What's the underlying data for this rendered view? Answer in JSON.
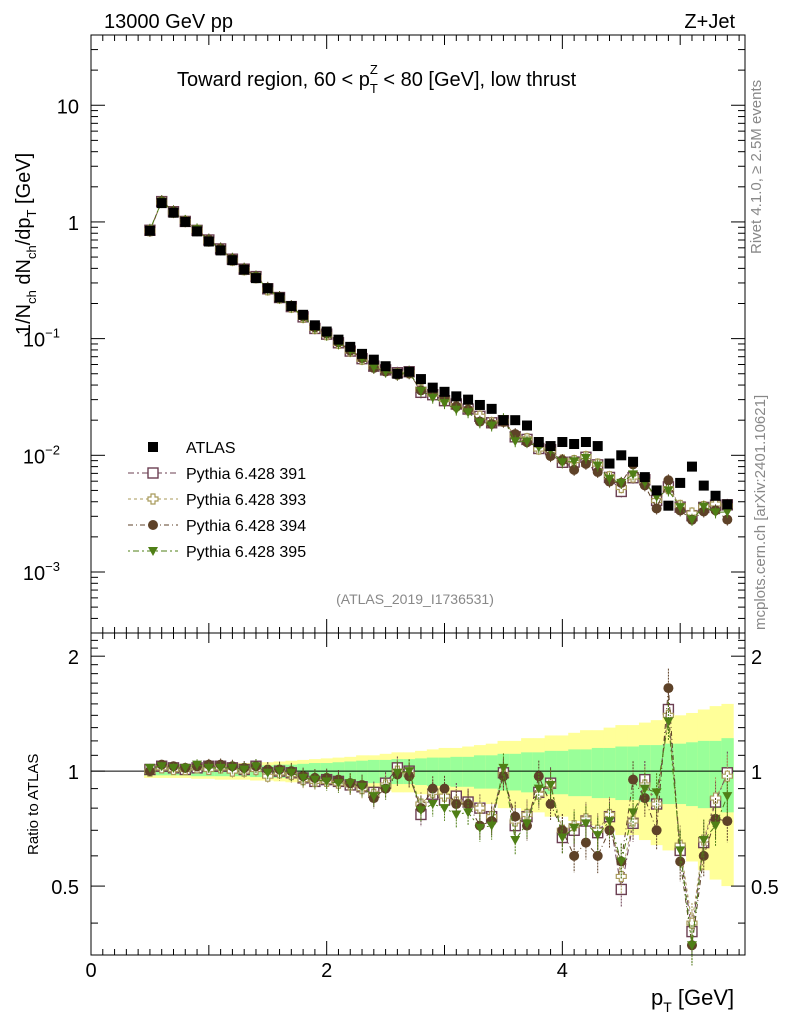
{
  "header": {
    "energy_label": "13000 GeV pp",
    "process_label": "Z+Jet",
    "plot_title_pre": "Toward region, 60 < p",
    "plot_title_sup": "Z",
    "plot_title_sub": "T",
    "plot_title_post": " < 80 [GeV], low thrust",
    "side_label_rivet": "Rivet 4.1.0, ≥ 2.5M events",
    "side_label_mcplots": "mcplots.cern.ch [arXiv:2401.10621]",
    "analysis_id": "(ATLAS_2019_I1736531)"
  },
  "axes": {
    "main_ylabel_parts": [
      "1/N",
      "ch",
      " dN",
      "ch",
      "/dp",
      "T",
      " [GeV]"
    ],
    "main_ylabel": "1/N_ch dN_ch/dp_T [GeV]",
    "ratio_ylabel": "Ratio to ATLAS",
    "xlabel_main": "p",
    "xlabel_sub": "T",
    "xlabel_unit": " [GeV]",
    "main_yticks": [
      {
        "value": 10,
        "label": "10",
        "exp": ""
      },
      {
        "value": 1,
        "label": "1",
        "exp": ""
      },
      {
        "value": 0.1,
        "label": "10",
        "exp": "−1"
      },
      {
        "value": 0.01,
        "label": "10",
        "exp": "−2"
      },
      {
        "value": 0.001,
        "label": "10",
        "exp": "−3"
      }
    ],
    "ratio_yticks": [
      {
        "value": 0.5,
        "label": "0.5"
      },
      {
        "value": 1,
        "label": "1"
      },
      {
        "value": 2,
        "label": "2"
      }
    ],
    "xticks": [
      {
        "value": 0,
        "label": "0"
      },
      {
        "value": 2,
        "label": "2"
      },
      {
        "value": 4,
        "label": "4"
      }
    ]
  },
  "legend": [
    {
      "label": "ATLAS",
      "key": "atlas"
    },
    {
      "label": "Pythia 6.428 391",
      "key": "s391"
    },
    {
      "label": "Pythia 6.428 393",
      "key": "s393"
    },
    {
      "label": "Pythia 6.428 394",
      "key": "s394"
    },
    {
      "label": "Pythia 6.428 395",
      "key": "s395"
    }
  ],
  "colors": {
    "atlas": "#000000",
    "s391": "#6b3f52",
    "s393": "#a89a5a",
    "s394": "#5e4228",
    "s395": "#4f7f16",
    "band_outer": "#ffff99",
    "band_inner": "#99ff99"
  },
  "chart_data": {
    "type": "scatter",
    "title": "Toward region, 60 < pT^Z < 80 [GeV], low thrust",
    "xlabel": "pT [GeV]",
    "ylabel": "1/Nch dNch/dpT [GeV]",
    "ratio_ylabel": "Ratio to ATLAS",
    "xlim": [
      0,
      5.55
    ],
    "ylim": [
      0.0003,
      40
    ],
    "yscale": "log",
    "ratio_ylim": [
      0.33,
      2.3
    ],
    "ratio_yscale": "log",
    "x": [
      0.5,
      0.6,
      0.7,
      0.8,
      0.9,
      1.0,
      1.1,
      1.2,
      1.3,
      1.4,
      1.5,
      1.6,
      1.7,
      1.8,
      1.9,
      2.0,
      2.1,
      2.2,
      2.3,
      2.4,
      2.5,
      2.6,
      2.7,
      2.8,
      2.9,
      3.0,
      3.1,
      3.2,
      3.3,
      3.4,
      3.5,
      3.6,
      3.7,
      3.8,
      3.9,
      4.0,
      4.1,
      4.2,
      4.3,
      4.4,
      4.5,
      4.6,
      4.7,
      4.8,
      4.9,
      5.0,
      5.1,
      5.2,
      5.3,
      5.4
    ],
    "atlas": [
      0.84,
      1.45,
      1.2,
      1.0,
      0.83,
      0.68,
      0.57,
      0.47,
      0.39,
      0.33,
      0.27,
      0.225,
      0.19,
      0.16,
      0.13,
      0.115,
      0.098,
      0.085,
      0.074,
      0.066,
      0.058,
      0.05,
      0.052,
      0.045,
      0.038,
      0.035,
      0.032,
      0.03,
      0.027,
      0.025,
      0.02,
      0.02,
      0.018,
      0.013,
      0.012,
      0.013,
      0.0125,
      0.013,
      0.012,
      0.0085,
      0.01,
      0.0088,
      0.0065,
      0.005,
      0.0037,
      0.0058,
      0.008,
      0.0055,
      0.0045,
      0.0038
    ],
    "series": [
      {
        "name": "Pythia 6.428 391",
        "key": "s391",
        "marker": "open-square",
        "ratio": [
          1.01,
          1.03,
          1.02,
          1.01,
          1.02,
          1.03,
          1.03,
          1.02,
          1.01,
          1.03,
          0.99,
          1.0,
          0.99,
          0.96,
          0.94,
          0.95,
          0.94,
          0.92,
          0.91,
          0.88,
          0.93,
          1.02,
          1.0,
          0.77,
          0.87,
          0.84,
          0.86,
          0.83,
          0.8,
          0.76,
          0.99,
          0.72,
          0.76,
          0.88,
          0.93,
          0.67,
          0.7,
          0.74,
          0.69,
          0.76,
          0.49,
          0.73,
          0.95,
          0.82,
          1.45,
          0.62,
          0.38,
          0.65,
          0.83,
          0.99
        ]
      },
      {
        "name": "Pythia 6.428 393",
        "key": "s393",
        "marker": "open-cross",
        "ratio": [
          1.0,
          1.02,
          1.01,
          1.01,
          1.02,
          1.01,
          1.02,
          1.0,
          1.0,
          1.01,
          0.97,
          0.99,
          0.98,
          0.95,
          0.94,
          0.94,
          0.93,
          0.92,
          0.9,
          0.87,
          0.92,
          1.0,
          0.98,
          0.82,
          0.88,
          0.86,
          0.83,
          0.82,
          0.8,
          0.76,
          0.98,
          0.74,
          0.77,
          0.87,
          0.92,
          0.7,
          0.72,
          0.75,
          0.7,
          0.77,
          0.53,
          0.74,
          0.92,
          0.82,
          1.4,
          0.64,
          0.4,
          0.66,
          0.85,
          0.97
        ]
      },
      {
        "name": "Pythia 6.428 394",
        "key": "s394",
        "marker": "filled-circle",
        "ratio": [
          1.0,
          1.04,
          1.03,
          1.02,
          1.03,
          1.04,
          1.04,
          1.03,
          1.02,
          1.03,
          1.01,
          1.01,
          1.0,
          0.97,
          0.96,
          0.96,
          0.95,
          0.93,
          0.92,
          0.85,
          0.9,
          0.98,
          0.97,
          0.8,
          0.9,
          0.9,
          0.82,
          0.82,
          0.72,
          0.74,
          0.97,
          0.76,
          0.72,
          0.97,
          0.82,
          0.7,
          0.6,
          0.65,
          0.6,
          0.7,
          0.58,
          0.95,
          0.85,
          0.7,
          1.65,
          0.58,
          0.35,
          0.6,
          0.75,
          0.74
        ]
      },
      {
        "name": "Pythia 6.428 395",
        "key": "s395",
        "marker": "filled-triangle-down",
        "ratio": [
          1.02,
          1.03,
          1.02,
          1.02,
          1.04,
          1.02,
          1.02,
          1.02,
          1.01,
          1.03,
          0.99,
          1.0,
          0.99,
          0.96,
          0.95,
          0.94,
          0.93,
          0.93,
          0.91,
          0.86,
          0.9,
          0.99,
          1.0,
          0.79,
          0.82,
          0.8,
          0.77,
          0.78,
          0.71,
          0.72,
          1.02,
          0.66,
          0.73,
          0.9,
          0.92,
          0.67,
          0.71,
          0.73,
          0.68,
          0.74,
          0.58,
          0.78,
          0.9,
          0.88,
          1.35,
          0.62,
          0.35,
          0.66,
          0.72,
          0.86
        ]
      }
    ],
    "band_inner_halfwidth": [
      0.025,
      0.025,
      0.025,
      0.025,
      0.03,
      0.03,
      0.03,
      0.03,
      0.03,
      0.035,
      0.035,
      0.04,
      0.04,
      0.045,
      0.05,
      0.05,
      0.055,
      0.06,
      0.065,
      0.07,
      0.07,
      0.075,
      0.075,
      0.08,
      0.085,
      0.085,
      0.09,
      0.09,
      0.1,
      0.1,
      0.11,
      0.11,
      0.12,
      0.12,
      0.13,
      0.13,
      0.14,
      0.14,
      0.15,
      0.15,
      0.16,
      0.16,
      0.17,
      0.17,
      0.18,
      0.18,
      0.19,
      0.2,
      0.2,
      0.22
    ],
    "band_outer_halfwidth": [
      0.04,
      0.04,
      0.04,
      0.04,
      0.045,
      0.045,
      0.05,
      0.05,
      0.05,
      0.055,
      0.055,
      0.06,
      0.065,
      0.07,
      0.075,
      0.08,
      0.085,
      0.09,
      0.1,
      0.1,
      0.11,
      0.12,
      0.12,
      0.13,
      0.14,
      0.15,
      0.15,
      0.16,
      0.17,
      0.18,
      0.2,
      0.2,
      0.22,
      0.22,
      0.24,
      0.24,
      0.26,
      0.28,
      0.28,
      0.3,
      0.32,
      0.32,
      0.34,
      0.36,
      0.38,
      0.4,
      0.42,
      0.45,
      0.48,
      0.5
    ]
  }
}
